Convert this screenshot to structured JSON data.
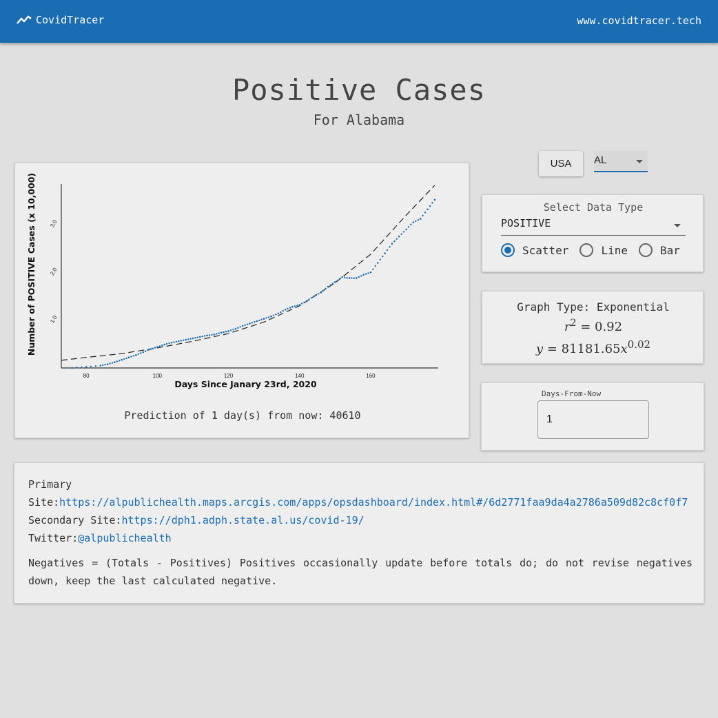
{
  "header": {
    "brand": "CovidTracer",
    "site": "www.covidtracer.tech"
  },
  "page": {
    "title": "Positive Cases",
    "subtitle": "For Alabama"
  },
  "controls": {
    "usa_button": "USA",
    "state_value": "AL",
    "data_type_label": "Select Data Type",
    "data_type_value": "POSITIVE",
    "radios": [
      "Scatter",
      "Line",
      "Bar"
    ],
    "selected_radio": "Scatter"
  },
  "graph_info": {
    "graph_type": "Graph Type: Exponential",
    "r2_value": "= 0.92",
    "equation_base": "= 81181.65",
    "equation_exp": "0.02"
  },
  "days": {
    "label": "Days-From-Now",
    "value": "1"
  },
  "prediction": "Prediction of 1 day(s) from now: 40610",
  "info": {
    "primary_label": "Primary Site:",
    "primary_url": "https://alpublichealth.maps.arcgis.com/apps/opsdashboard/index.html#/6d2771faa9da4a2786a509d82c8cf0f7",
    "secondary_label": "Secondary Site:",
    "secondary_url": "https://dph1.adph.state.al.us/covid-19/",
    "twitter_label": "Twitter:",
    "twitter_handle": "@alpublichealth",
    "note": "Negatives = (Totals - Positives) Positives occasionally update before totals do; do not revise negatives down, keep the last calculated negative."
  },
  "colors": {
    "primary": "#1a6db2",
    "scatter": "#1a6db2",
    "fit_line": "#222222"
  },
  "chart_data": {
    "type": "scatter",
    "xlabel": "Days Since Janary 23rd, 2020",
    "ylabel": "Number of POSITIVE Cases (x 10,000)",
    "xlim": [
      73,
      179
    ],
    "ylim": [
      0,
      3.85
    ],
    "xticks": [
      80,
      100,
      120,
      140,
      160
    ],
    "xtick_labels": [
      "80",
      "100",
      "120",
      "140",
      "160"
    ],
    "yticks": [
      1,
      2,
      3
    ],
    "ytick_labels": [
      "1.0",
      "2.0",
      "3.0"
    ],
    "series": [
      {
        "kind": "points",
        "color": "#1a6db2",
        "x": [
          76,
          80,
          84,
          86,
          88,
          90,
          92,
          94,
          96,
          98,
          100,
          102,
          104,
          106,
          108,
          110,
          112,
          114,
          116,
          118,
          120,
          122,
          124,
          126,
          128,
          130,
          132,
          134,
          136,
          138,
          140,
          142,
          144,
          146,
          148,
          150,
          152,
          154,
          156,
          158,
          160,
          162,
          164,
          166,
          168,
          170,
          172,
          174,
          176,
          178
        ],
        "y": [
          0.0,
          0.02,
          0.05,
          0.08,
          0.12,
          0.17,
          0.22,
          0.27,
          0.33,
          0.39,
          0.44,
          0.49,
          0.53,
          0.56,
          0.59,
          0.62,
          0.65,
          0.68,
          0.7,
          0.74,
          0.77,
          0.82,
          0.88,
          0.93,
          0.98,
          1.03,
          1.08,
          1.14,
          1.22,
          1.28,
          1.32,
          1.4,
          1.5,
          1.58,
          1.7,
          1.8,
          1.9,
          1.88,
          1.88,
          1.95,
          2.0,
          2.2,
          2.4,
          2.6,
          2.75,
          2.9,
          3.05,
          3.12,
          3.32,
          3.52
        ]
      },
      {
        "kind": "fit",
        "color": "#222222",
        "x": [
          73,
          80,
          90,
          100,
          110,
          120,
          130,
          140,
          150,
          160,
          170,
          178
        ],
        "y": [
          0.16,
          0.22,
          0.3,
          0.42,
          0.56,
          0.72,
          0.96,
          1.3,
          1.78,
          2.38,
          3.2,
          3.82
        ]
      }
    ]
  }
}
